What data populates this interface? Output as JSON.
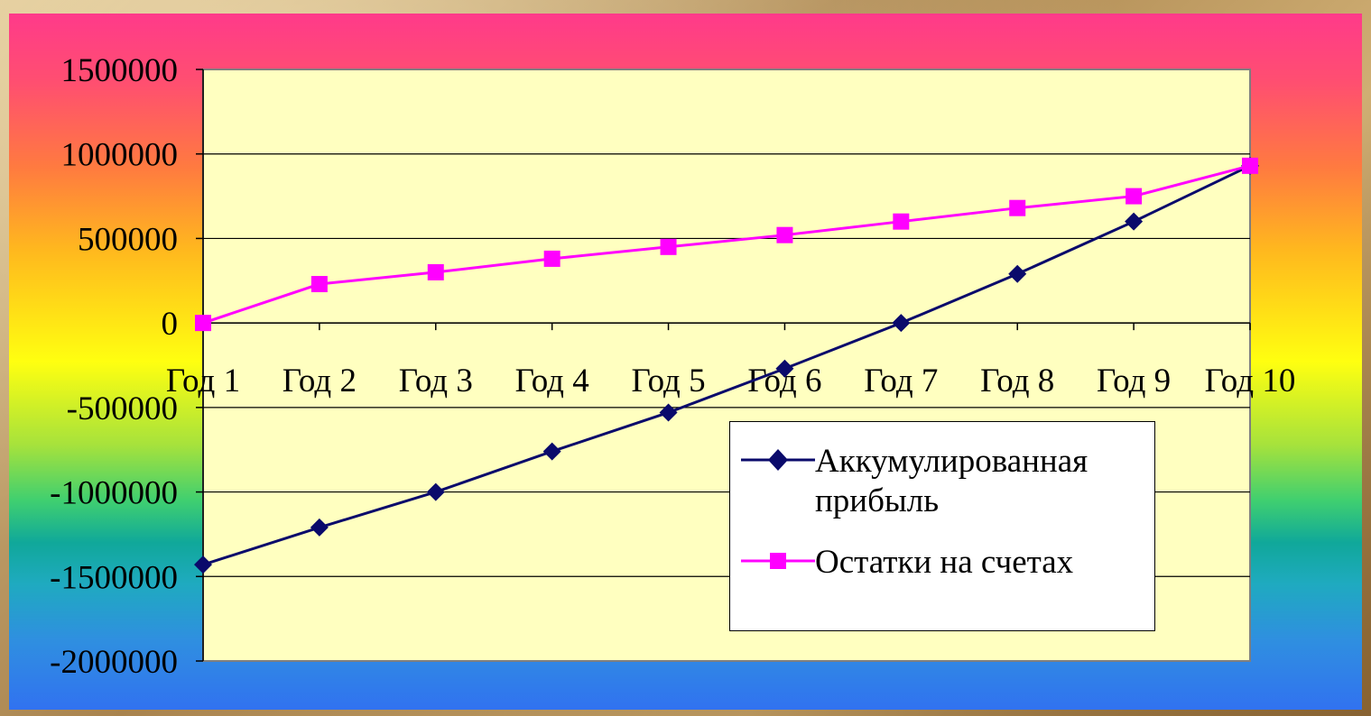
{
  "chart_data": {
    "type": "line",
    "categories": [
      "Год 1",
      "Год 2",
      "Год 3",
      "Год 4",
      "Год 5",
      "Год 6",
      "Год 7",
      "Год 8",
      "Год 9",
      "Год 10"
    ],
    "series": [
      {
        "name": "Аккумулированная прибыль",
        "color": "#0a0a6b",
        "marker": "diamond",
        "values": [
          -1430000,
          -1210000,
          -1000000,
          -760000,
          -530000,
          -270000,
          0,
          290000,
          600000,
          930000
        ]
      },
      {
        "name": "Остатки на счетах",
        "color": "#ff00ff",
        "marker": "square",
        "values": [
          0,
          230000,
          300000,
          380000,
          450000,
          520000,
          600000,
          680000,
          750000,
          930000
        ]
      }
    ],
    "yticks": [
      "1500000",
      "1000000",
      "500000",
      "0",
      "-500000",
      "-1000000",
      "-1500000",
      "-2000000"
    ],
    "ylim": [
      -2000000,
      1500000
    ],
    "plot_background": "#ffffc0",
    "grid": "horizontal",
    "legend_position": "lower-right"
  }
}
